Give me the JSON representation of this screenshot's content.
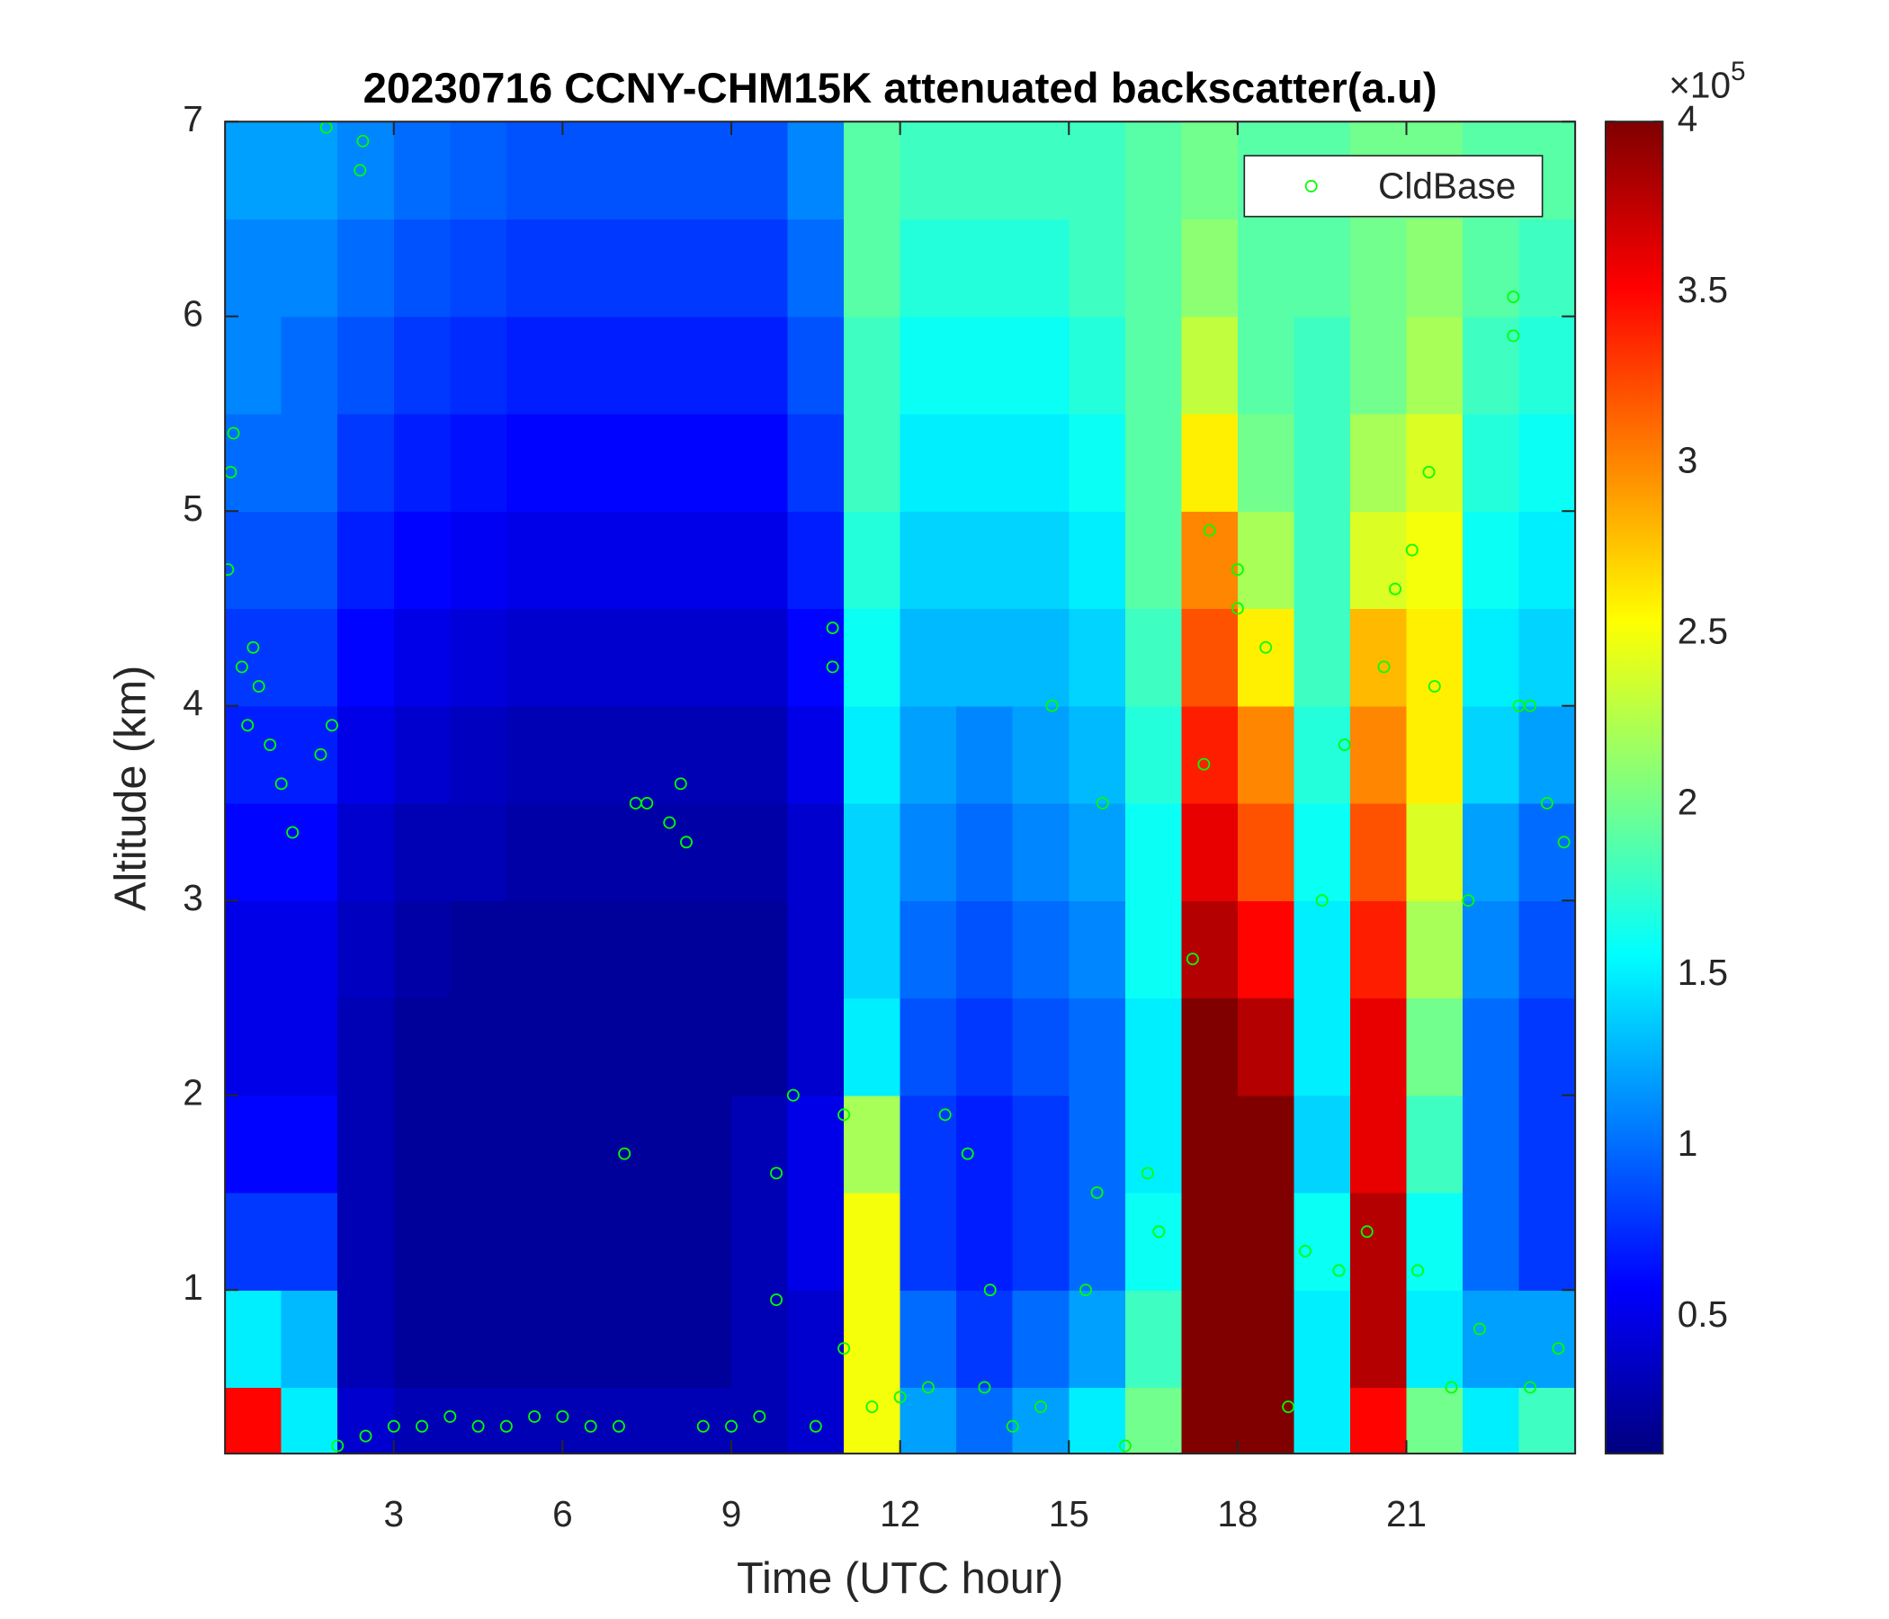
{
  "chart_data": {
    "type": "heatmap",
    "title": "20230716 CCNY-CHM15K attenuated backscatter(a.u)",
    "x_label": "Time (UTC hour)",
    "y_label": "Altitude (km)",
    "xlim": [
      0,
      24
    ],
    "xticks": [
      3,
      6,
      9,
      12,
      15,
      18,
      21
    ],
    "ylim": [
      0.16,
      7
    ],
    "yticks": [
      1,
      2,
      3,
      4,
      5,
      6,
      7
    ],
    "colormap": "jet",
    "clim": [
      0.1,
      4
    ],
    "cticks": [
      0.5,
      1,
      1.5,
      2,
      2.5,
      3,
      3.5,
      4
    ],
    "colorbar_exponent_label": "×10",
    "colorbar_exponent": 5,
    "legend": "upper right",
    "x": [
      0.5,
      1.5,
      2.5,
      3.5,
      4.5,
      5.5,
      6.5,
      7.5,
      8.5,
      9.5,
      10.5,
      11.5,
      12.5,
      13.5,
      14.5,
      15.5,
      16.5,
      17.5,
      18.5,
      19.5,
      20.5,
      21.5,
      22.5,
      23.5
    ],
    "y": [
      0.25,
      0.75,
      1.25,
      1.75,
      2.25,
      2.75,
      3.25,
      3.75,
      4.25,
      4.75,
      5.25,
      5.75,
      6.25,
      6.75
    ],
    "z": [
      [
        3.5,
        1.5,
        0.4,
        0.3,
        0.3,
        0.3,
        0.3,
        0.3,
        0.3,
        0.3,
        0.4,
        2.5,
        1.2,
        1.0,
        1.2,
        1.5,
        2.0,
        4.0,
        4.0,
        1.5,
        3.5,
        2.0,
        1.5,
        1.8
      ],
      [
        1.5,
        1.3,
        0.3,
        0.2,
        0.2,
        0.2,
        0.2,
        0.2,
        0.2,
        0.3,
        0.4,
        2.5,
        1.0,
        0.8,
        1.0,
        1.2,
        1.8,
        4.0,
        4.0,
        1.5,
        3.8,
        1.5,
        1.2,
        1.2
      ],
      [
        0.8,
        0.8,
        0.3,
        0.2,
        0.2,
        0.2,
        0.2,
        0.2,
        0.2,
        0.3,
        0.5,
        2.5,
        0.8,
        0.7,
        0.8,
        1.0,
        1.6,
        4.0,
        4.0,
        1.6,
        3.8,
        1.6,
        1.0,
        0.8
      ],
      [
        0.6,
        0.6,
        0.3,
        0.2,
        0.2,
        0.2,
        0.2,
        0.2,
        0.2,
        0.3,
        0.5,
        2.2,
        0.8,
        0.7,
        0.8,
        1.0,
        1.5,
        4.0,
        4.0,
        1.4,
        3.6,
        1.8,
        1.0,
        0.8
      ],
      [
        0.5,
        0.5,
        0.3,
        0.2,
        0.2,
        0.2,
        0.2,
        0.2,
        0.2,
        0.2,
        0.4,
        1.5,
        0.9,
        0.8,
        0.9,
        1.0,
        1.5,
        4.0,
        3.8,
        1.5,
        3.6,
        2.0,
        1.0,
        0.8
      ],
      [
        0.5,
        0.5,
        0.35,
        0.25,
        0.2,
        0.2,
        0.2,
        0.2,
        0.2,
        0.2,
        0.4,
        1.4,
        1.0,
        0.9,
        1.0,
        1.1,
        1.6,
        3.8,
        3.5,
        1.5,
        3.4,
        2.2,
        1.1,
        0.9
      ],
      [
        0.6,
        0.6,
        0.4,
        0.3,
        0.3,
        0.25,
        0.25,
        0.25,
        0.25,
        0.25,
        0.4,
        1.4,
        1.1,
        1.0,
        1.1,
        1.2,
        1.6,
        3.6,
        3.2,
        1.6,
        3.2,
        2.4,
        1.2,
        1.0
      ],
      [
        0.7,
        0.7,
        0.5,
        0.4,
        0.35,
        0.3,
        0.3,
        0.3,
        0.3,
        0.3,
        0.5,
        1.5,
        1.2,
        1.1,
        1.2,
        1.3,
        1.7,
        3.4,
        3.0,
        1.7,
        3.0,
        2.6,
        1.4,
        1.2
      ],
      [
        0.8,
        0.8,
        0.6,
        0.5,
        0.45,
        0.4,
        0.4,
        0.4,
        0.4,
        0.4,
        0.6,
        1.6,
        1.3,
        1.3,
        1.3,
        1.4,
        1.8,
        3.2,
        2.6,
        1.8,
        2.8,
        2.6,
        1.5,
        1.4
      ],
      [
        0.9,
        0.9,
        0.7,
        0.6,
        0.55,
        0.5,
        0.5,
        0.5,
        0.5,
        0.5,
        0.7,
        1.7,
        1.4,
        1.4,
        1.4,
        1.5,
        1.9,
        3.0,
        2.2,
        1.8,
        2.4,
        2.5,
        1.6,
        1.5
      ],
      [
        1.0,
        1.0,
        0.8,
        0.7,
        0.65,
        0.6,
        0.6,
        0.6,
        0.6,
        0.6,
        0.8,
        1.8,
        1.5,
        1.5,
        1.5,
        1.6,
        1.9,
        2.6,
        2.0,
        1.8,
        2.2,
        2.4,
        1.7,
        1.6
      ],
      [
        1.1,
        1.0,
        0.9,
        0.8,
        0.75,
        0.7,
        0.7,
        0.7,
        0.7,
        0.7,
        0.9,
        1.8,
        1.6,
        1.6,
        1.6,
        1.7,
        1.9,
        2.3,
        1.9,
        1.8,
        2.0,
        2.2,
        1.8,
        1.7
      ],
      [
        1.1,
        1.1,
        1.0,
        0.9,
        0.85,
        0.8,
        0.8,
        0.8,
        0.8,
        0.8,
        1.0,
        1.9,
        1.7,
        1.7,
        1.7,
        1.8,
        1.9,
        2.1,
        1.9,
        1.9,
        2.0,
        2.1,
        1.9,
        1.8
      ],
      [
        1.2,
        1.2,
        1.1,
        1.0,
        0.95,
        0.9,
        0.9,
        0.9,
        0.9,
        0.9,
        1.1,
        1.9,
        1.8,
        1.8,
        1.8,
        1.8,
        1.9,
        2.0,
        1.9,
        1.9,
        2.0,
        2.0,
        1.9,
        1.9
      ]
    ],
    "series": [
      {
        "name": "CldBase",
        "type": "scatter",
        "color": "#00ff00",
        "x": [
          0.05,
          0.1,
          0.15,
          0.3,
          0.4,
          0.5,
          0.6,
          0.8,
          1.0,
          1.2,
          1.7,
          1.9,
          1.8,
          2.45,
          2.4,
          2.0,
          2.5,
          3,
          3.5,
          4,
          4.5,
          5,
          5.5,
          6,
          6.5,
          7,
          7.1,
          7.3,
          7.5,
          7.9,
          8.1,
          8.2,
          8.5,
          9,
          9.5,
          9.8,
          9.8,
          10.1,
          10.5,
          10.8,
          10.8,
          11,
          11,
          11.5,
          12,
          12.5,
          12.8,
          13.2,
          13.5,
          13.6,
          14,
          14.5,
          14.7,
          15.3,
          15.5,
          15.6,
          16,
          16.4,
          16.6,
          17.2,
          17.5,
          17.4,
          18,
          18,
          18.5,
          18.9,
          19.2,
          19.5,
          19.8,
          19.9,
          20.3,
          20.6,
          20.8,
          21.1,
          21.4,
          21.5,
          21.2,
          21.8,
          22.1,
          22.3,
          22.9,
          22.9,
          23,
          23.2,
          23.5,
          23.8,
          23.7,
          23.2
        ],
        "values": [
          4.7,
          5.2,
          5.4,
          4.2,
          3.9,
          4.3,
          4.1,
          3.8,
          3.6,
          3.35,
          3.75,
          3.9,
          6.97,
          6.9,
          6.75,
          0.2,
          0.25,
          0.3,
          0.3,
          0.35,
          0.3,
          0.3,
          0.35,
          0.35,
          0.3,
          0.3,
          1.7,
          3.5,
          3.5,
          3.4,
          3.6,
          3.3,
          0.3,
          0.3,
          0.35,
          0.95,
          1.6,
          2.0,
          0.3,
          4.4,
          4.2,
          1.9,
          0.7,
          0.4,
          0.45,
          0.5,
          1.9,
          1.7,
          0.5,
          1.0,
          0.3,
          0.4,
          4.0,
          1.0,
          1.5,
          3.5,
          0.2,
          1.6,
          1.3,
          2.7,
          4.9,
          3.7,
          4.7,
          4.5,
          4.3,
          0.4,
          1.2,
          3.0,
          1.1,
          3.8,
          1.3,
          4.2,
          4.6,
          4.8,
          5.2,
          4.1,
          1.1,
          0.5,
          3.0,
          0.8,
          6.1,
          5.9,
          4.0,
          4.0,
          3.5,
          3.3,
          0.7,
          0.5
        ]
      }
    ]
  }
}
